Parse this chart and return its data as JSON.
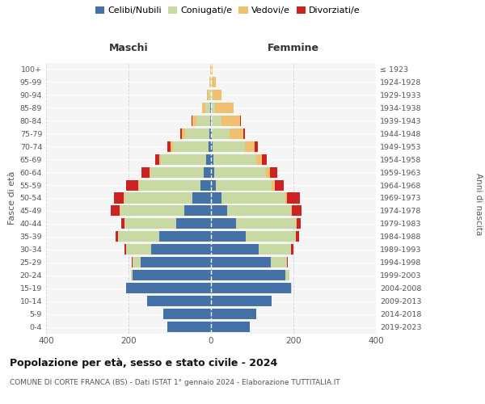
{
  "age_groups": [
    "0-4",
    "5-9",
    "10-14",
    "15-19",
    "20-24",
    "25-29",
    "30-34",
    "35-39",
    "40-44",
    "45-49",
    "50-54",
    "55-59",
    "60-64",
    "65-69",
    "70-74",
    "75-79",
    "80-84",
    "85-89",
    "90-94",
    "95-99",
    "100+"
  ],
  "birth_years": [
    "2019-2023",
    "2014-2018",
    "2009-2013",
    "2004-2008",
    "1999-2003",
    "1994-1998",
    "1989-1993",
    "1984-1988",
    "1979-1983",
    "1974-1978",
    "1969-1973",
    "1964-1968",
    "1959-1963",
    "1954-1958",
    "1949-1953",
    "1944-1948",
    "1939-1943",
    "1934-1938",
    "1929-1933",
    "1924-1928",
    "≤ 1923"
  ],
  "males": {
    "celibi": [
      105,
      115,
      155,
      205,
      190,
      170,
      145,
      125,
      85,
      65,
      45,
      25,
      18,
      12,
      5,
      3,
      1,
      1,
      0,
      0,
      0
    ],
    "coniugati": [
      0,
      0,
      0,
      1,
      5,
      20,
      60,
      100,
      125,
      155,
      165,
      150,
      130,
      110,
      88,
      60,
      35,
      12,
      5,
      2,
      0
    ],
    "vedovi": [
      0,
      0,
      0,
      0,
      0,
      0,
      0,
      0,
      0,
      1,
      1,
      2,
      2,
      4,
      6,
      8,
      10,
      8,
      4,
      2,
      1
    ],
    "divorziati": [
      0,
      0,
      0,
      0,
      0,
      2,
      4,
      7,
      8,
      22,
      25,
      28,
      18,
      10,
      6,
      3,
      1,
      0,
      0,
      0,
      0
    ]
  },
  "females": {
    "nubili": [
      95,
      110,
      148,
      195,
      180,
      145,
      115,
      85,
      60,
      40,
      25,
      12,
      8,
      5,
      3,
      1,
      0,
      0,
      0,
      0,
      0
    ],
    "coniugate": [
      0,
      0,
      0,
      2,
      10,
      40,
      80,
      120,
      145,
      155,
      155,
      135,
      125,
      105,
      80,
      45,
      25,
      10,
      3,
      1,
      0
    ],
    "vedove": [
      0,
      0,
      0,
      0,
      0,
      0,
      0,
      1,
      2,
      2,
      4,
      7,
      10,
      14,
      22,
      32,
      45,
      45,
      22,
      10,
      3
    ],
    "divorziate": [
      0,
      0,
      0,
      0,
      1,
      2,
      5,
      8,
      10,
      22,
      32,
      22,
      18,
      12,
      8,
      4,
      2,
      0,
      0,
      0,
      0
    ]
  },
  "colors": {
    "celibi_nubili": "#4472a8",
    "coniugati": "#c8d9a4",
    "vedovi": "#f0c070",
    "divorziati": "#cc2222"
  },
  "legend_labels": [
    "Celibi/Nubili",
    "Coniugati/e",
    "Vedovi/e",
    "Divorziati/e"
  ],
  "title": "Popolazione per età, sesso e stato civile - 2024",
  "subtitle": "COMUNE DI CORTE FRANCA (BS) - Dati ISTAT 1° gennaio 2024 - Elaborazione TUTTITALIA.IT",
  "xlabel_left": "Maschi",
  "xlabel_right": "Femmine",
  "ylabel_left": "Fasce di età",
  "ylabel_right": "Anni di nascita",
  "xlim": 400,
  "bg_color": "#f5f5f5",
  "grid_color": "#cccccc"
}
